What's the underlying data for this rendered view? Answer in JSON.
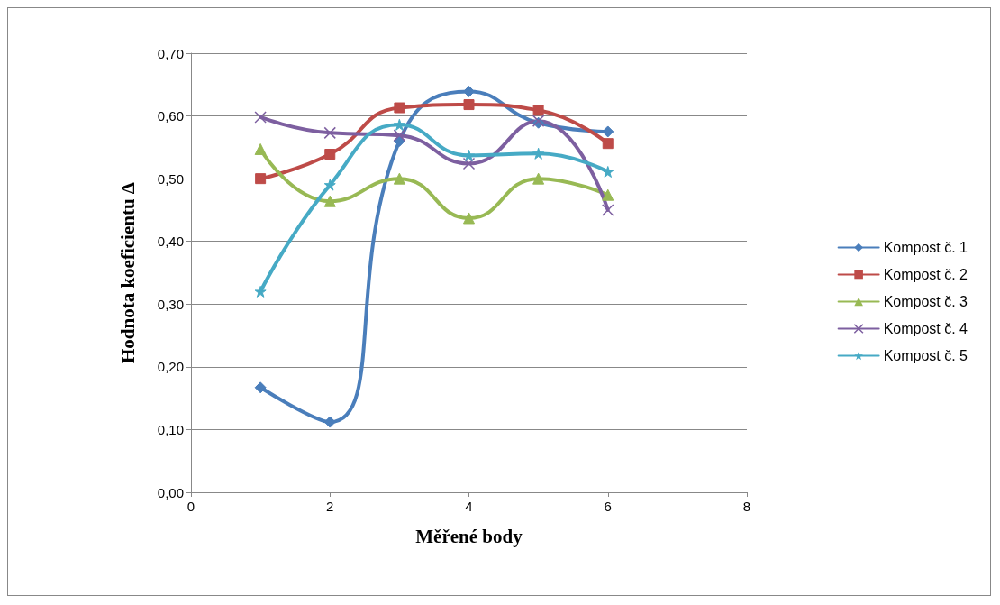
{
  "chart_data": {
    "type": "line",
    "xlabel": "Měřené body",
    "ylabel": "Hodnota koeficientu Δ",
    "x": [
      1,
      2,
      3,
      4,
      5,
      6
    ],
    "xlim": [
      0,
      8
    ],
    "xticks": [
      0,
      2,
      4,
      6,
      8
    ],
    "ylim": [
      0,
      0.7
    ],
    "yticks": [
      {
        "value": 0,
        "label": "0,00"
      },
      {
        "value": 0.1,
        "label": "0,10"
      },
      {
        "value": 0.2,
        "label": "0,20"
      },
      {
        "value": 0.3,
        "label": "0,30"
      },
      {
        "value": 0.4,
        "label": "0,40"
      },
      {
        "value": 0.5,
        "label": "0,50"
      },
      {
        "value": 0.6,
        "label": "0,60"
      },
      {
        "value": 0.7,
        "label": "0,70"
      }
    ],
    "grid": "y",
    "legend": "right",
    "series": [
      {
        "name": "Kompost č. 1",
        "color": "#4a7ebb",
        "marker": "diamond",
        "values": [
          0.167,
          0.112,
          0.56,
          0.639,
          0.589,
          0.575
        ]
      },
      {
        "name": "Kompost č. 2",
        "color": "#be4b48",
        "marker": "square",
        "values": [
          0.5,
          0.539,
          0.613,
          0.618,
          0.609,
          0.556
        ]
      },
      {
        "name": "Kompost č. 3",
        "color": "#98b954",
        "marker": "triangle",
        "values": [
          0.547,
          0.464,
          0.5,
          0.437,
          0.5,
          0.474
        ]
      },
      {
        "name": "Kompost č. 4",
        "color": "#7d5fa0",
        "marker": "cross",
        "values": [
          0.598,
          0.573,
          0.569,
          0.524,
          0.592,
          0.45
        ]
      },
      {
        "name": "Kompost č. 5",
        "color": "#46aac5",
        "marker": "star",
        "values": [
          0.32,
          0.49,
          0.586,
          0.537,
          0.54,
          0.511
        ]
      }
    ]
  }
}
